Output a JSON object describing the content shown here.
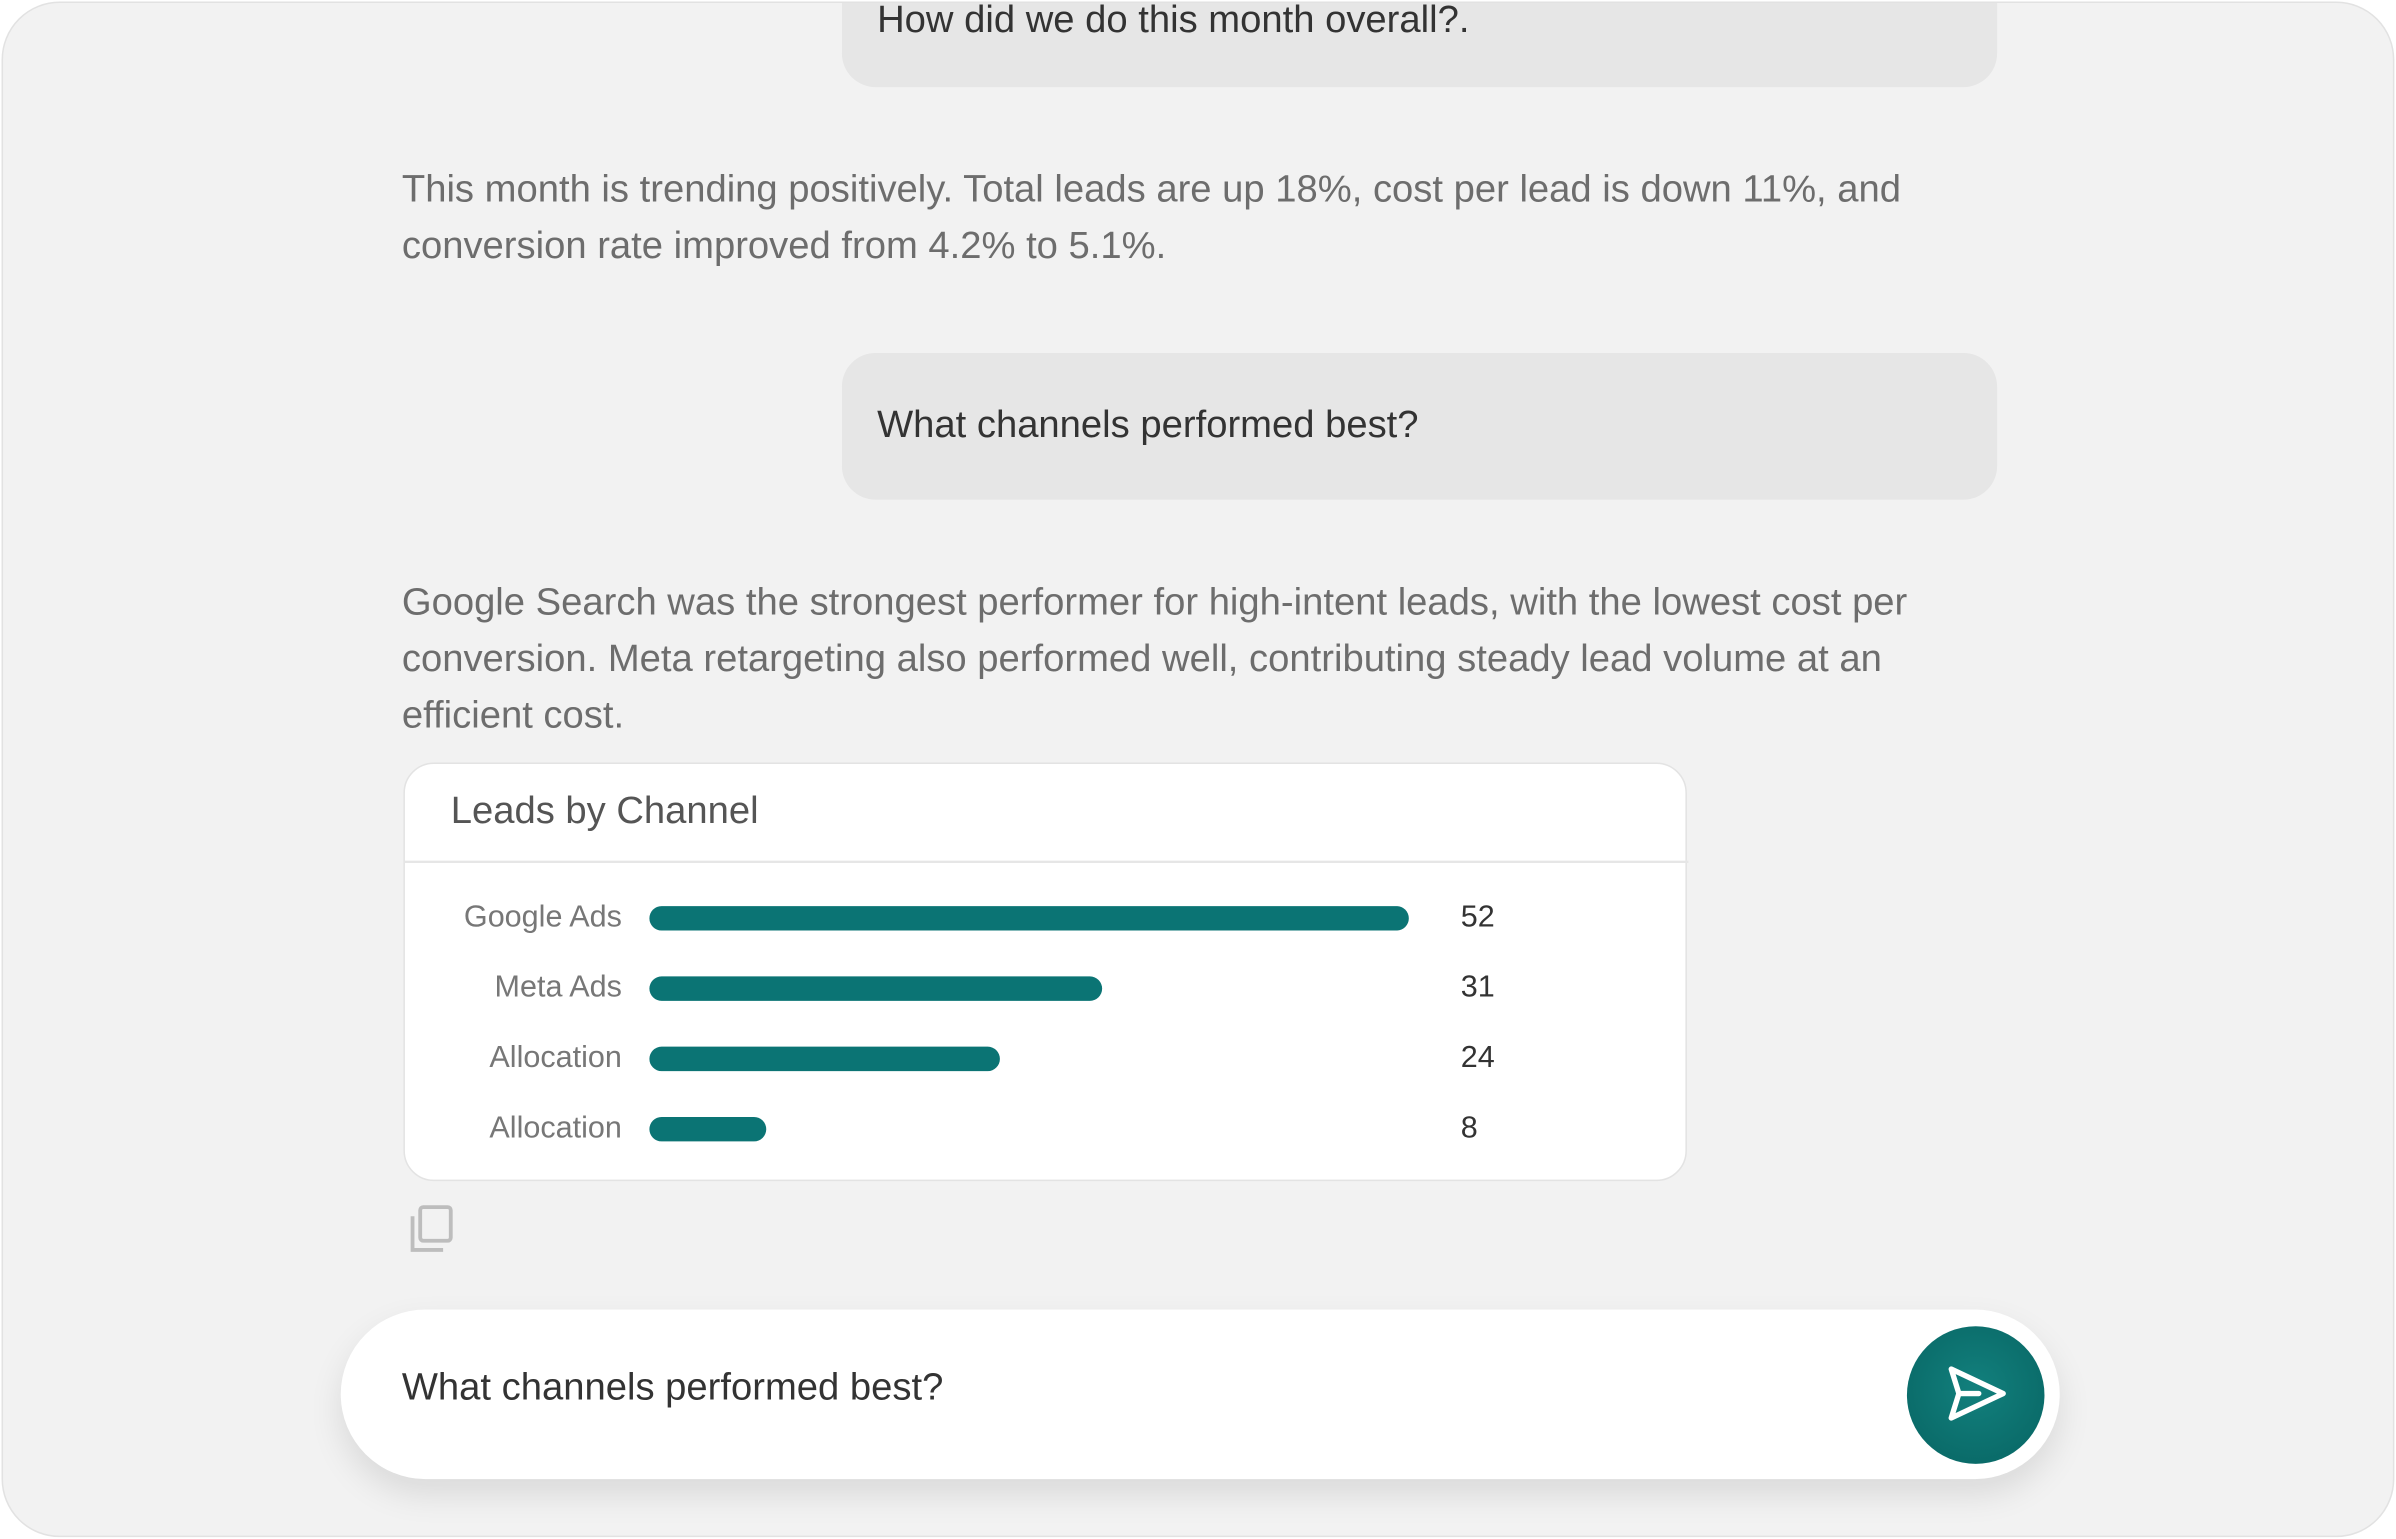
{
  "user_messages": [
    "How did we do this month overall?.",
    "What channels performed best?"
  ],
  "assistant_messages": [
    "This month is trending positively. Total leads are up 18%, cost per lead is down 11%, and conversion rate improved from 4.2% to 5.1%.",
    "Google Search was the strongest performer for high-intent leads, with the lowest cost per conversion. Meta retargeting also performed well, contributing steady lead volume at an efficient cost."
  ],
  "chart_data": {
    "type": "bar",
    "orientation": "horizontal",
    "title": "Leads by Channel",
    "categories": [
      "Google Ads",
      "Meta Ads",
      "Allocation",
      "Allocation"
    ],
    "values": [
      52,
      31,
      24,
      8
    ],
    "color": "#0b7474"
  },
  "input": {
    "text": "What channels performed best?"
  }
}
